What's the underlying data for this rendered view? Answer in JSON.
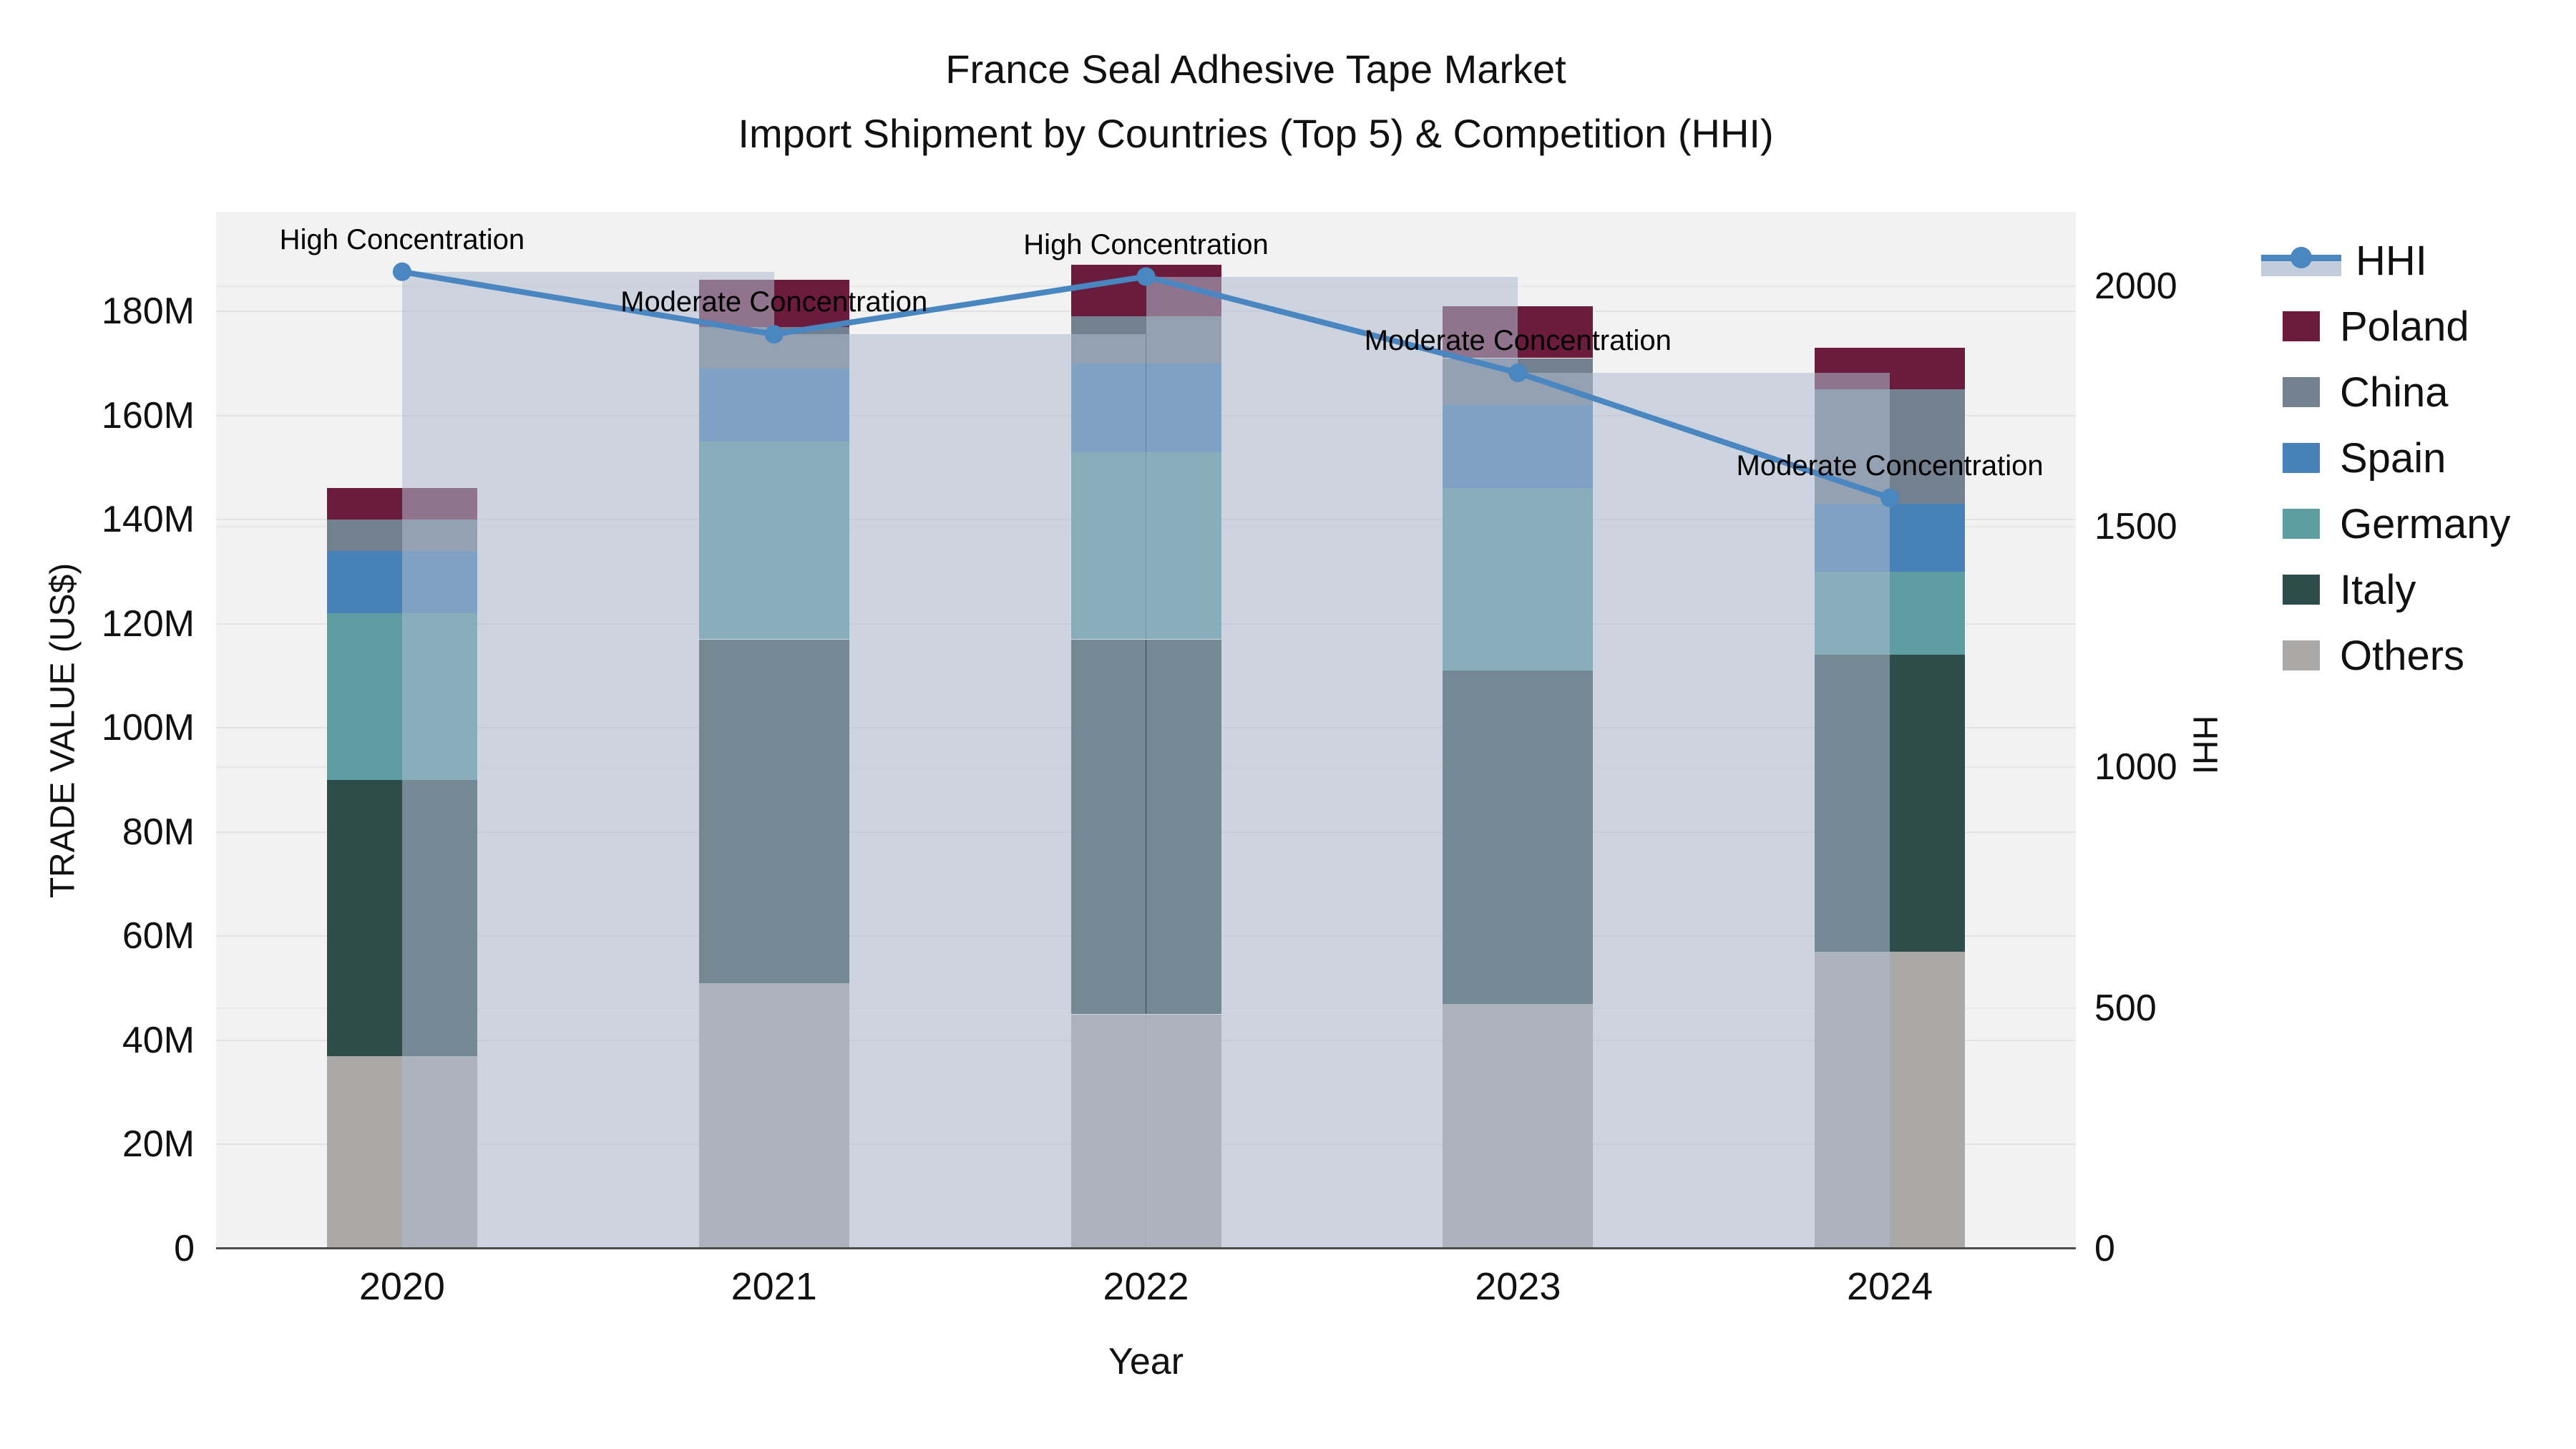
{
  "title": {
    "line1": "France Seal Adhesive Tape Market",
    "line2": "Import Shipment by Countries (Top 5) & Competition (HHI)"
  },
  "axes": {
    "x_label": "Year",
    "y_left_label": "TRADE VALUE (US$)",
    "y_right_label": "HHI",
    "y_left_ticks": [
      "0",
      "20M",
      "40M",
      "60M",
      "80M",
      "100M",
      "120M",
      "140M",
      "160M",
      "180M"
    ],
    "y_left_tick_values": [
      0,
      20,
      40,
      60,
      80,
      100,
      120,
      140,
      160,
      180
    ],
    "y_right_ticks": [
      "0",
      "500",
      "1000",
      "1500",
      "2000"
    ],
    "y_right_tick_values": [
      0,
      500,
      1000,
      1500,
      2000
    ]
  },
  "legend_items": [
    {
      "label": "HHI",
      "type": "line",
      "color": "#4a86c0"
    },
    {
      "label": "Poland",
      "type": "swatch",
      "color": "#6b1b3b"
    },
    {
      "label": "China",
      "type": "swatch",
      "color": "#73808f"
    },
    {
      "label": "Spain",
      "type": "swatch",
      "color": "#4681b7"
    },
    {
      "label": "Germany",
      "type": "swatch",
      "color": "#5c9ea2"
    },
    {
      "label": "Italy",
      "type": "swatch",
      "color": "#2e4c49"
    },
    {
      "label": "Others",
      "type": "swatch",
      "color": "#aba9a7"
    }
  ],
  "colors": {
    "poland": "#6b1b3b",
    "china": "#73808f",
    "spain": "#4681b7",
    "germany": "#5c9ea2",
    "italy": "#2e4c49",
    "others": "#aba9a7",
    "hhi_line": "#4a86c0",
    "hhi_band": "rgba(174,188,208,0.55)",
    "plot_background": "#f2f2f2",
    "gridline": "#e3e3e3"
  },
  "chart_data": {
    "type": "bar",
    "subtype": "stacked-bars-with-hhi-line-overlay",
    "categories": [
      "2020",
      "2021",
      "2022",
      "2023",
      "2024"
    ],
    "values_unit": "Trade value, millions US$",
    "series": [
      {
        "name": "Others",
        "color_key": "others",
        "values": [
          37,
          51,
          45,
          47,
          57
        ]
      },
      {
        "name": "Italy",
        "color_key": "italy",
        "values": [
          53,
          66,
          72,
          64,
          57
        ]
      },
      {
        "name": "Germany",
        "color_key": "germany",
        "values": [
          32,
          38,
          36,
          35,
          16
        ]
      },
      {
        "name": "Spain",
        "color_key": "spain",
        "values": [
          12,
          14,
          17,
          16,
          13
        ]
      },
      {
        "name": "China",
        "color_key": "china",
        "values": [
          6,
          8,
          9,
          9,
          22
        ]
      },
      {
        "name": "Poland",
        "color_key": "poland",
        "values": [
          6,
          9,
          10,
          10,
          8
        ]
      }
    ],
    "stack_totals": [
      146,
      186,
      189,
      181,
      173
    ],
    "hhi": {
      "name": "HHI",
      "values": [
        2030,
        1900,
        2020,
        1820,
        1560
      ],
      "bands_drawn_for_first_n": 4
    },
    "annotations": [
      {
        "category": "2020",
        "text": "High Concentration"
      },
      {
        "category": "2021",
        "text": "Moderate Concentration"
      },
      {
        "category": "2022",
        "text": "High Concentration"
      },
      {
        "category": "2023",
        "text": "Moderate Concentration"
      },
      {
        "category": "2024",
        "text": "Moderate Concentration"
      }
    ],
    "title": "France Seal Adhesive Tape Market — Import Shipment by Countries (Top 5) & Competition (HHI)",
    "xlabel": "Year",
    "ylabel_left": "TRADE VALUE (US$)",
    "ylabel_right": "HHI",
    "ylim_left_millions": [
      0,
      199.1
    ],
    "ylim_right_hhi": [
      0,
      2154.6
    ],
    "grid": true,
    "legend_position": "right"
  }
}
